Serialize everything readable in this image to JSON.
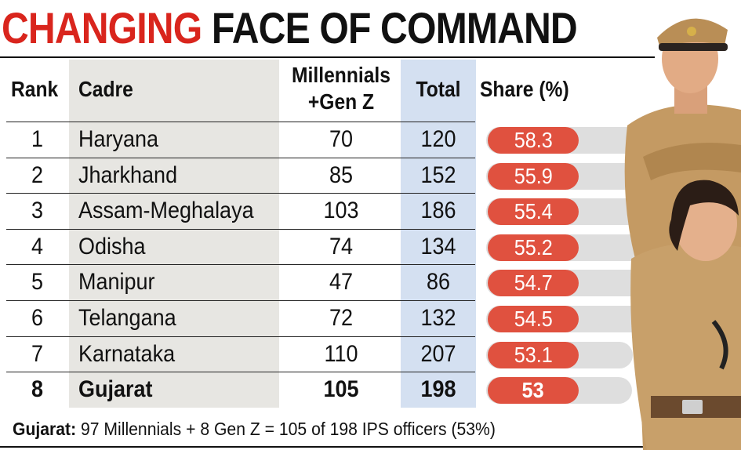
{
  "title": {
    "part1": "CHANGING",
    "part2": "FACE OF COMMAND"
  },
  "headers": {
    "rank": "Rank",
    "cadre": "Cadre",
    "millennials_line1": "Millennials",
    "millennials_line2": "+Gen Z",
    "total": "Total",
    "share": "Share (%)"
  },
  "rows": [
    {
      "rank": "1",
      "cadre": "Haryana",
      "millennials_genz": "70",
      "total": "120",
      "share": "58.3"
    },
    {
      "rank": "2",
      "cadre": "Jharkhand",
      "millennials_genz": "85",
      "total": "152",
      "share": "55.9"
    },
    {
      "rank": "3",
      "cadre": "Assam-Meghalaya",
      "millennials_genz": "103",
      "total": "186",
      "share": "55.4"
    },
    {
      "rank": "4",
      "cadre": "Odisha",
      "millennials_genz": "74",
      "total": "134",
      "share": "55.2"
    },
    {
      "rank": "5",
      "cadre": "Manipur",
      "millennials_genz": "47",
      "total": "86",
      "share": "54.7"
    },
    {
      "rank": "6",
      "cadre": "Telangana",
      "millennials_genz": "72",
      "total": "132",
      "share": "54.5"
    },
    {
      "rank": "7",
      "cadre": "Karnataka",
      "millennials_genz": "110",
      "total": "207",
      "share": "53.1"
    },
    {
      "rank": "8",
      "cadre": "Gujarat",
      "millennials_genz": "105",
      "total": "198",
      "share": "53"
    }
  ],
  "footnote": {
    "label": "Gujarat:",
    "text": "97 Millennials + 8 Gen Z = 105 of 198 IPS officers (53%)"
  },
  "colors": {
    "accent_red": "#d9251d",
    "pill": "#e0513f",
    "total_column": "#d4e0f1",
    "cadre_column": "#e7e6e2"
  },
  "chart_data": {
    "type": "table",
    "title": "CHANGING FACE OF COMMAND",
    "columns": [
      "Rank",
      "Cadre",
      "Millennials +Gen Z",
      "Total",
      "Share (%)"
    ],
    "rows": [
      [
        1,
        "Haryana",
        70,
        120,
        58.3
      ],
      [
        2,
        "Jharkhand",
        85,
        152,
        55.9
      ],
      [
        3,
        "Assam-Meghalaya",
        103,
        186,
        55.4
      ],
      [
        4,
        "Odisha",
        74,
        134,
        55.2
      ],
      [
        5,
        "Manipur",
        47,
        86,
        54.7
      ],
      [
        6,
        "Telangana",
        72,
        132,
        54.5
      ],
      [
        7,
        "Karnataka",
        110,
        207,
        53.1
      ],
      [
        8,
        "Gujarat",
        105,
        198,
        53
      ]
    ]
  }
}
